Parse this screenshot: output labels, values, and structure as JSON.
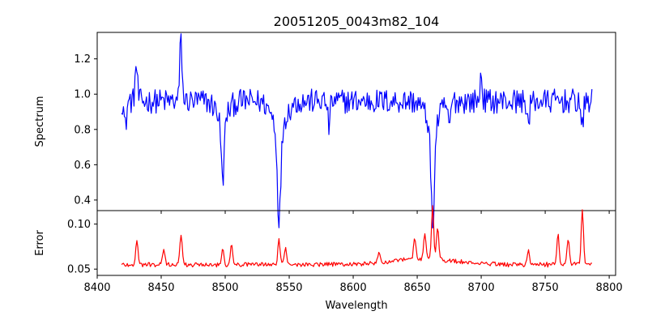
{
  "chart_data": [
    {
      "type": "line",
      "title": "20051205_0043m82_104",
      "xlabel": "",
      "ylabel": "Spectrum",
      "xlim": [
        8400,
        8805
      ],
      "ylim": [
        0.34,
        1.35
      ],
      "xticks": [
        8400,
        8450,
        8500,
        8550,
        8600,
        8650,
        8700,
        8750,
        8800
      ],
      "yticks": [
        0.4,
        0.6,
        0.8,
        1.0,
        1.2
      ],
      "ytick_labels": [
        "0.4",
        "0.6",
        "0.8",
        "1.0",
        "1.2"
      ],
      "grid": false,
      "series": [
        {
          "color": "#0000ff",
          "x_range": [
            8419,
            8787
          ],
          "baseline": 0.96,
          "noise_amplitude": 0.07,
          "lines": [
            {
              "center": 8498.0,
              "depth": 0.36,
              "width": 1.2
            },
            {
              "center": 8542.1,
              "depth": 0.53,
              "width": 1.4
            },
            {
              "center": 8662.1,
              "depth": 0.57,
              "width": 1.3
            }
          ],
          "features": [
            {
              "x": 8465.4,
              "y": 1.31
            },
            {
              "x": 8430.5,
              "y": 1.17
            },
            {
              "x": 8422.0,
              "y": 0.81
            },
            {
              "x": 8779.0,
              "y": 0.8
            },
            {
              "x": 8737.0,
              "y": 0.82
            },
            {
              "x": 8581.0,
              "y": 0.82
            },
            {
              "x": 8675.0,
              "y": 0.8
            },
            {
              "x": 8700.0,
              "y": 1.1
            }
          ]
        }
      ]
    },
    {
      "type": "line",
      "title": "",
      "xlabel": "Wavelength",
      "ylabel": "Error",
      "xlim": [
        8400,
        8805
      ],
      "ylim": [
        0.043,
        0.115
      ],
      "xticks": [
        8400,
        8450,
        8500,
        8550,
        8600,
        8650,
        8700,
        8750,
        8800
      ],
      "xtick_labels": [
        "8400",
        "8450",
        "8500",
        "8550",
        "8600",
        "8650",
        "8700",
        "8750",
        "8800"
      ],
      "yticks": [
        0.05,
        0.1
      ],
      "ytick_labels": [
        "0.05",
        "0.10"
      ],
      "grid": false,
      "series": [
        {
          "color": "#ff0000",
          "x_range": [
            8419,
            8787
          ],
          "baseline": 0.055,
          "noise_amplitude": 0.003,
          "features": [
            {
              "x": 8431.0,
              "y": 0.081
            },
            {
              "x": 8452.0,
              "y": 0.071
            },
            {
              "x": 8465.5,
              "y": 0.088
            },
            {
              "x": 8498.0,
              "y": 0.072
            },
            {
              "x": 8505.0,
              "y": 0.078
            },
            {
              "x": 8542.0,
              "y": 0.082
            },
            {
              "x": 8547.0,
              "y": 0.074
            },
            {
              "x": 8620.0,
              "y": 0.065
            },
            {
              "x": 8648.0,
              "y": 0.08
            },
            {
              "x": 8656.0,
              "y": 0.085
            },
            {
              "x": 8662.0,
              "y": 0.114
            },
            {
              "x": 8666.0,
              "y": 0.09
            },
            {
              "x": 8737.0,
              "y": 0.07
            },
            {
              "x": 8760.0,
              "y": 0.09
            },
            {
              "x": 8768.0,
              "y": 0.085
            },
            {
              "x": 8779.0,
              "y": 0.114
            }
          ]
        }
      ]
    }
  ]
}
